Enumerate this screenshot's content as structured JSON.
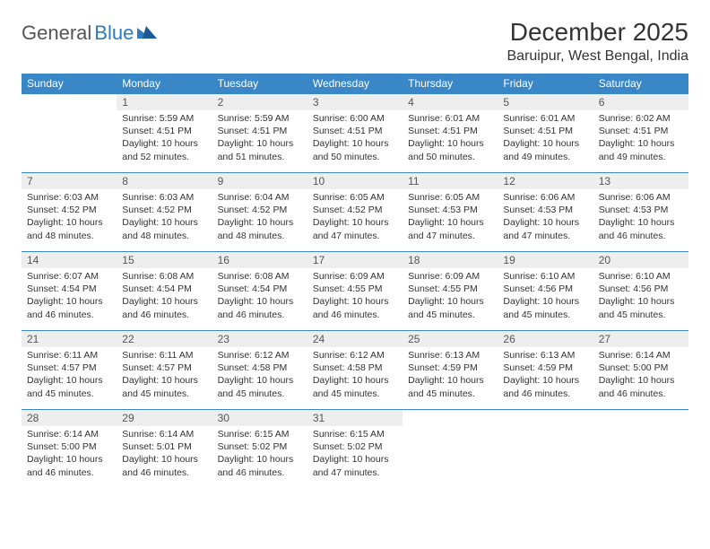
{
  "logo": {
    "text1": "General",
    "text2": "Blue"
  },
  "title": "December 2025",
  "location": "Baruipur, West Bengal, India",
  "colors": {
    "header_bg": "#3a87c8",
    "header_text": "#ffffff",
    "daynum_bg": "#eeeeee",
    "border": "#3a87c8",
    "logo_blue": "#2f7bbf",
    "body_text": "#333333"
  },
  "day_labels": [
    "Sunday",
    "Monday",
    "Tuesday",
    "Wednesday",
    "Thursday",
    "Friday",
    "Saturday"
  ],
  "weeks": [
    [
      null,
      {
        "n": "1",
        "sr": "Sunrise: 5:59 AM",
        "ss": "Sunset: 4:51 PM",
        "dl": "Daylight: 10 hours and 52 minutes."
      },
      {
        "n": "2",
        "sr": "Sunrise: 5:59 AM",
        "ss": "Sunset: 4:51 PM",
        "dl": "Daylight: 10 hours and 51 minutes."
      },
      {
        "n": "3",
        "sr": "Sunrise: 6:00 AM",
        "ss": "Sunset: 4:51 PM",
        "dl": "Daylight: 10 hours and 50 minutes."
      },
      {
        "n": "4",
        "sr": "Sunrise: 6:01 AM",
        "ss": "Sunset: 4:51 PM",
        "dl": "Daylight: 10 hours and 50 minutes."
      },
      {
        "n": "5",
        "sr": "Sunrise: 6:01 AM",
        "ss": "Sunset: 4:51 PM",
        "dl": "Daylight: 10 hours and 49 minutes."
      },
      {
        "n": "6",
        "sr": "Sunrise: 6:02 AM",
        "ss": "Sunset: 4:51 PM",
        "dl": "Daylight: 10 hours and 49 minutes."
      }
    ],
    [
      {
        "n": "7",
        "sr": "Sunrise: 6:03 AM",
        "ss": "Sunset: 4:52 PM",
        "dl": "Daylight: 10 hours and 48 minutes."
      },
      {
        "n": "8",
        "sr": "Sunrise: 6:03 AM",
        "ss": "Sunset: 4:52 PM",
        "dl": "Daylight: 10 hours and 48 minutes."
      },
      {
        "n": "9",
        "sr": "Sunrise: 6:04 AM",
        "ss": "Sunset: 4:52 PM",
        "dl": "Daylight: 10 hours and 48 minutes."
      },
      {
        "n": "10",
        "sr": "Sunrise: 6:05 AM",
        "ss": "Sunset: 4:52 PM",
        "dl": "Daylight: 10 hours and 47 minutes."
      },
      {
        "n": "11",
        "sr": "Sunrise: 6:05 AM",
        "ss": "Sunset: 4:53 PM",
        "dl": "Daylight: 10 hours and 47 minutes."
      },
      {
        "n": "12",
        "sr": "Sunrise: 6:06 AM",
        "ss": "Sunset: 4:53 PM",
        "dl": "Daylight: 10 hours and 47 minutes."
      },
      {
        "n": "13",
        "sr": "Sunrise: 6:06 AM",
        "ss": "Sunset: 4:53 PM",
        "dl": "Daylight: 10 hours and 46 minutes."
      }
    ],
    [
      {
        "n": "14",
        "sr": "Sunrise: 6:07 AM",
        "ss": "Sunset: 4:54 PM",
        "dl": "Daylight: 10 hours and 46 minutes."
      },
      {
        "n": "15",
        "sr": "Sunrise: 6:08 AM",
        "ss": "Sunset: 4:54 PM",
        "dl": "Daylight: 10 hours and 46 minutes."
      },
      {
        "n": "16",
        "sr": "Sunrise: 6:08 AM",
        "ss": "Sunset: 4:54 PM",
        "dl": "Daylight: 10 hours and 46 minutes."
      },
      {
        "n": "17",
        "sr": "Sunrise: 6:09 AM",
        "ss": "Sunset: 4:55 PM",
        "dl": "Daylight: 10 hours and 46 minutes."
      },
      {
        "n": "18",
        "sr": "Sunrise: 6:09 AM",
        "ss": "Sunset: 4:55 PM",
        "dl": "Daylight: 10 hours and 45 minutes."
      },
      {
        "n": "19",
        "sr": "Sunrise: 6:10 AM",
        "ss": "Sunset: 4:56 PM",
        "dl": "Daylight: 10 hours and 45 minutes."
      },
      {
        "n": "20",
        "sr": "Sunrise: 6:10 AM",
        "ss": "Sunset: 4:56 PM",
        "dl": "Daylight: 10 hours and 45 minutes."
      }
    ],
    [
      {
        "n": "21",
        "sr": "Sunrise: 6:11 AM",
        "ss": "Sunset: 4:57 PM",
        "dl": "Daylight: 10 hours and 45 minutes."
      },
      {
        "n": "22",
        "sr": "Sunrise: 6:11 AM",
        "ss": "Sunset: 4:57 PM",
        "dl": "Daylight: 10 hours and 45 minutes."
      },
      {
        "n": "23",
        "sr": "Sunrise: 6:12 AM",
        "ss": "Sunset: 4:58 PM",
        "dl": "Daylight: 10 hours and 45 minutes."
      },
      {
        "n": "24",
        "sr": "Sunrise: 6:12 AM",
        "ss": "Sunset: 4:58 PM",
        "dl": "Daylight: 10 hours and 45 minutes."
      },
      {
        "n": "25",
        "sr": "Sunrise: 6:13 AM",
        "ss": "Sunset: 4:59 PM",
        "dl": "Daylight: 10 hours and 45 minutes."
      },
      {
        "n": "26",
        "sr": "Sunrise: 6:13 AM",
        "ss": "Sunset: 4:59 PM",
        "dl": "Daylight: 10 hours and 46 minutes."
      },
      {
        "n": "27",
        "sr": "Sunrise: 6:14 AM",
        "ss": "Sunset: 5:00 PM",
        "dl": "Daylight: 10 hours and 46 minutes."
      }
    ],
    [
      {
        "n": "28",
        "sr": "Sunrise: 6:14 AM",
        "ss": "Sunset: 5:00 PM",
        "dl": "Daylight: 10 hours and 46 minutes."
      },
      {
        "n": "29",
        "sr": "Sunrise: 6:14 AM",
        "ss": "Sunset: 5:01 PM",
        "dl": "Daylight: 10 hours and 46 minutes."
      },
      {
        "n": "30",
        "sr": "Sunrise: 6:15 AM",
        "ss": "Sunset: 5:02 PM",
        "dl": "Daylight: 10 hours and 46 minutes."
      },
      {
        "n": "31",
        "sr": "Sunrise: 6:15 AM",
        "ss": "Sunset: 5:02 PM",
        "dl": "Daylight: 10 hours and 47 minutes."
      },
      null,
      null,
      null
    ]
  ]
}
